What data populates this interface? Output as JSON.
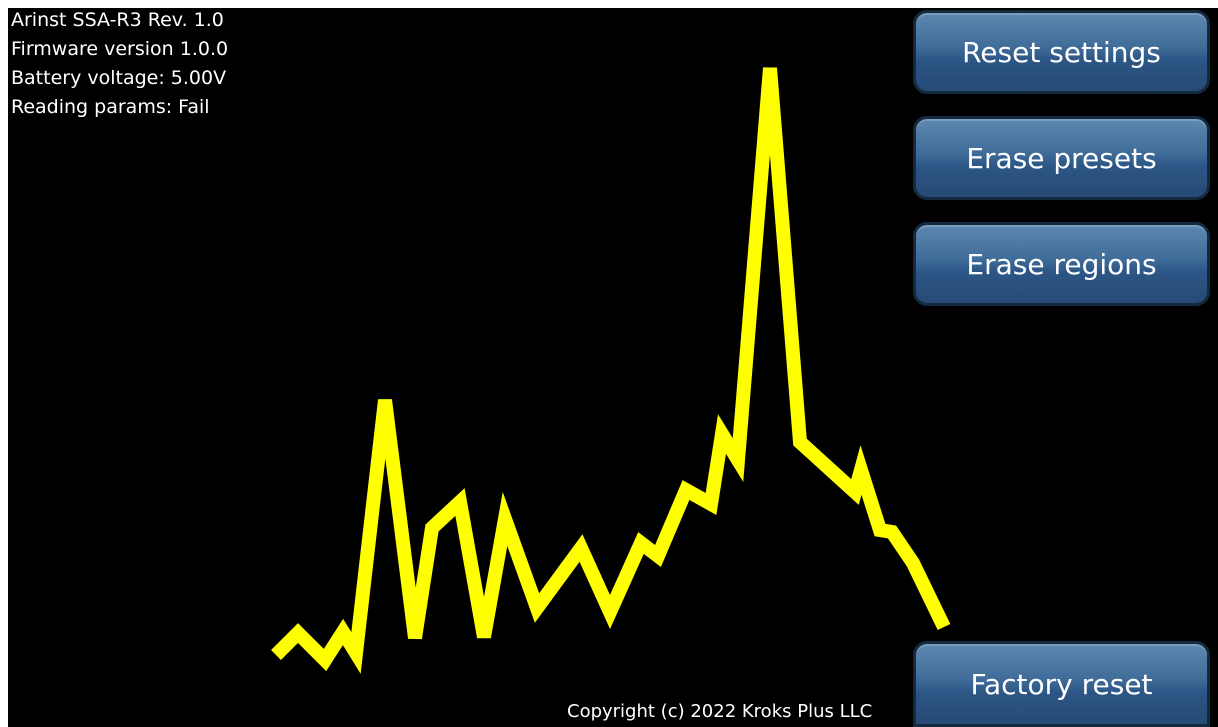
{
  "device_info": {
    "model": "Arinst SSA-R3 Rev. 1.0",
    "firmware": "Firmware version 1.0.0",
    "battery": "Battery voltage: 5.00V",
    "reading_label": "Reading params:",
    "reading_status": "Fail"
  },
  "buttons": {
    "reset_settings": "Reset settings",
    "erase_presets": "Erase presets",
    "erase_regions": "Erase regions",
    "factory_reset": "Factory reset"
  },
  "footer": {
    "copyright": "Copyright (c) 2022 Kroks Plus LLC"
  },
  "colors": {
    "background": "#000000",
    "trace": "#ffff00",
    "button": "#3f6b98",
    "text": "#ffffff"
  }
}
